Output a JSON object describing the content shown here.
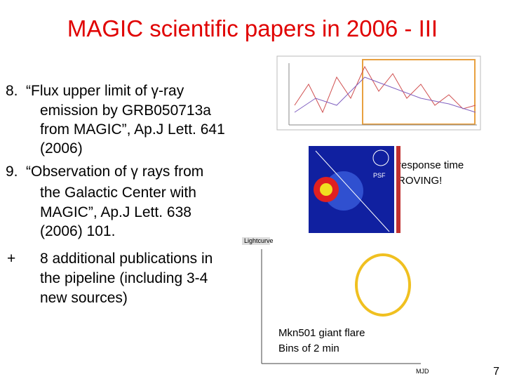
{
  "header": {
    "title": "MAGIC scientific papers in 2006 - III"
  },
  "items": [
    {
      "marker": "8.",
      "lines": [
        "“Flux upper limit of γ-ray",
        "emission by GRB050713a",
        "from MAGIC”, Ap.J Lett. 641",
        "(2006)"
      ]
    },
    {
      "marker": "9.",
      "lines": [
        "“Observation of γ rays from",
        "the Galactic Center with",
        "MAGIC”, Ap.J Lett. 638",
        "(2006) 101."
      ]
    },
    {
      "marker": "+",
      "lines": [
        "8 additional publications in",
        "the pipeline (including 3-4",
        "new sources)"
      ]
    }
  ],
  "figures": {
    "grb_note": [
      "response time",
      "ROVING!"
    ],
    "skymap_label": "PSF",
    "lightcurve_title": "Lightcurve",
    "lightcurve_xlabel": "MJD",
    "flare_note": [
      "Mkn501 giant flare",
      "Bins of 2 min"
    ]
  },
  "footer": {
    "page_number": "7"
  }
}
